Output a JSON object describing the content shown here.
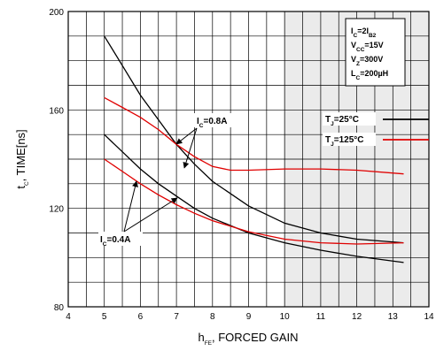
{
  "chart_data": {
    "type": "line",
    "xlabel": "h",
    "xlabel_sub": "FE",
    "xlabel_rest": ", FORCED GAIN",
    "ylabel": "t",
    "ylabel_sub": "C",
    "ylabel_rest": ", TIME[ns]",
    "xlim": [
      4,
      14
    ],
    "ylim": [
      80,
      200
    ],
    "x_ticks": [
      4,
      5,
      6,
      7,
      8,
      9,
      10,
      11,
      12,
      13,
      14
    ],
    "y_ticks": [
      80,
      120,
      160,
      200
    ],
    "grid": true,
    "conditions": [
      {
        "text": "I",
        "sub": "C",
        "rest": "=2I",
        "sub2": "B2"
      },
      {
        "text": "V",
        "sub": "CC",
        "rest": "=15V"
      },
      {
        "text": "V",
        "sub": "Z",
        "rest": "=300V"
      },
      {
        "text": "L",
        "sub": "C",
        "rest": "=200µH"
      }
    ],
    "legend": [
      {
        "label_main": "T",
        "label_sub": "J",
        "label_rest": "=25°C",
        "color": "#000000"
      },
      {
        "label_main": "T",
        "label_sub": "J",
        "label_rest": "=125°C",
        "color": "#e00000"
      }
    ],
    "annotations": [
      {
        "main": "I",
        "sub": "C",
        "rest": "=0.8A"
      },
      {
        "main": "I",
        "sub": "C",
        "rest": "=0.4A"
      }
    ],
    "series": [
      {
        "group": "Ic=0.8A, Tj=25°C",
        "color": "#000000",
        "x": [
          5,
          5.5,
          6,
          6.5,
          7,
          7.5,
          8,
          9,
          10,
          11,
          12,
          13.3
        ],
        "y": [
          190,
          178,
          166,
          156,
          146,
          138,
          131,
          121,
          114,
          110,
          107.5,
          106
        ]
      },
      {
        "group": "Ic=0.8A, Tj=125°C",
        "color": "#e00000",
        "x": [
          5,
          5.5,
          6,
          6.5,
          7,
          7.5,
          8,
          8.5,
          9,
          10,
          11,
          12,
          13.3
        ],
        "y": [
          165,
          161,
          157,
          152,
          146,
          141,
          137,
          135.5,
          135.5,
          136,
          136,
          135.5,
          134
        ]
      },
      {
        "group": "Ic=0.4A, Tj=25°C",
        "color": "#000000",
        "x": [
          5,
          5.5,
          6,
          6.5,
          7,
          7.5,
          8,
          9,
          10,
          11,
          12,
          13.3
        ],
        "y": [
          150,
          143,
          136,
          130,
          125,
          120,
          116,
          110,
          106,
          103,
          100.5,
          98
        ]
      },
      {
        "group": "Ic=0.4A, Tj=125°C",
        "color": "#e00000",
        "x": [
          5,
          5.5,
          6,
          6.5,
          7,
          7.5,
          8,
          9,
          10,
          11,
          12,
          13.3
        ],
        "y": [
          140,
          135,
          130,
          125.5,
          121.5,
          118,
          115,
          110.5,
          107.5,
          106,
          105.5,
          106
        ]
      }
    ]
  }
}
